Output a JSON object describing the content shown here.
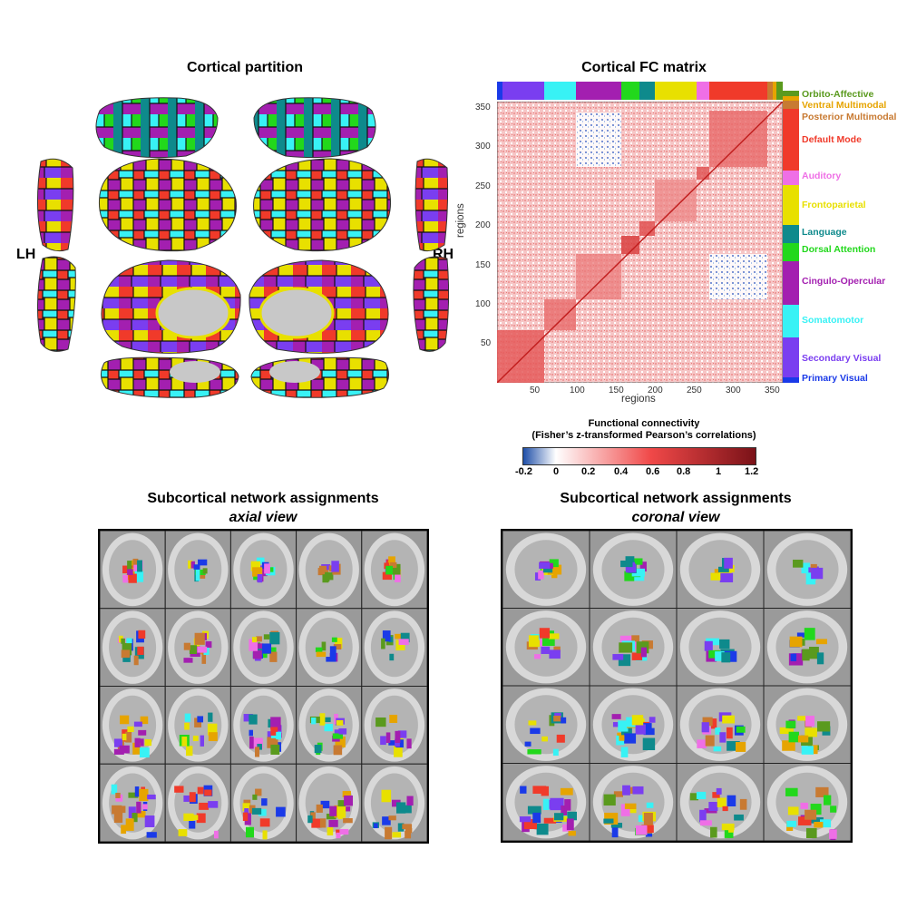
{
  "panels": {
    "cortical_partition": {
      "title": "Cortical partition",
      "lh_label": "LH",
      "rh_label": "RH"
    },
    "fc_matrix": {
      "title": "Cortical FC matrix",
      "xlabel": "regions",
      "ylabel": "regions",
      "x_ticks": [
        "50",
        "100",
        "150",
        "200",
        "250",
        "300",
        "350"
      ],
      "y_ticks": [
        "50",
        "100",
        "150",
        "200",
        "250",
        "300",
        "350"
      ]
    },
    "colorbar": {
      "title_line1": "Functional connectivity",
      "title_line2": "(Fisher’s z-transformed Pearson’s correlations)",
      "ticks": [
        "-0.2",
        "0",
        "0.2",
        "0.4",
        "0.6",
        "0.8",
        "1",
        "1.2"
      ]
    },
    "subcortical_axial": {
      "title": "Subcortical network assignments",
      "subtitle": "axial view"
    },
    "subcortical_coronal": {
      "title": "Subcortical network assignments",
      "subtitle": "coronal view"
    }
  },
  "networks": [
    {
      "name": "Orbito-Affective",
      "color": "#5a9a1e"
    },
    {
      "name": "Ventral Multimodal",
      "color": "#e6a400"
    },
    {
      "name": "Posterior Multimodal",
      "color": "#c87a32"
    },
    {
      "name": "Default Mode",
      "color": "#f03a2a"
    },
    {
      "name": "Auditory",
      "color": "#ef6fe6"
    },
    {
      "name": "Frontoparietal",
      "color": "#e8e000"
    },
    {
      "name": "Language",
      "color": "#0e8a8c"
    },
    {
      "name": "Dorsal Attention",
      "color": "#22d81c"
    },
    {
      "name": "Cingulo-Opercular",
      "color": "#a31fb0"
    },
    {
      "name": "Somatomotor",
      "color": "#38f2f5"
    },
    {
      "name": "Secondary Visual",
      "color": "#7a3ef0"
    },
    {
      "name": "Primary Visual",
      "color": "#1a3ae8"
    }
  ],
  "colorbar_colors": {
    "low": "#1f4fa8",
    "zero": "#ffffff",
    "mid": "#f04848",
    "high": "#7a1218"
  }
}
